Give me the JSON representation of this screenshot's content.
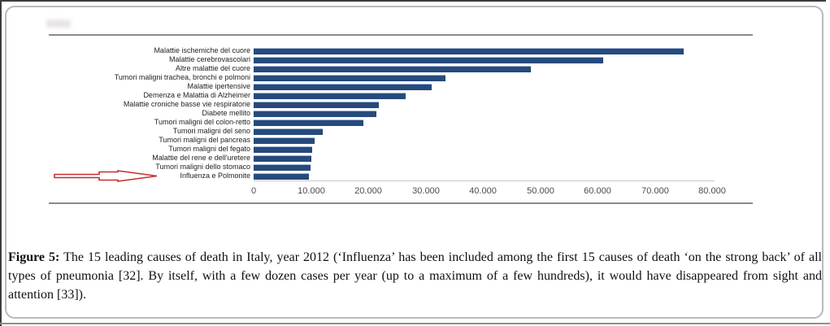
{
  "figure": {
    "caption_label": "Figure 5:",
    "caption_text": "The 15 leading causes of death in Italy, year 2012 (‘Influenza’ has been included among the first 15 causes of death ‘on the strong back’ of all types of pneumonia [32]. By itself, with a few dozen cases per year (up to a maximum of a few hundreds), it would have disappeared from sight and attention [33])."
  },
  "chart_data": {
    "type": "bar",
    "orientation": "horizontal",
    "title": "",
    "xlabel": "",
    "ylabel": "",
    "categories": [
      "Malattie ischemiche del cuore",
      "Malattie cerebrovascolari",
      "Altre malattie del cuore",
      "Tumori maligni trachea, bronchi e polmoni",
      "Malattie ipertensive",
      "Demenza e Malattia di Alzheimer",
      "Malattie croniche basse vie respiratorie",
      "Diabete mellito",
      "Tumori maligni del colon-retto",
      "Tumori maligni del seno",
      "Tumori maligni del pancreas",
      "Tumori maligni del fegato",
      "Malattie del rene e dell'uretere",
      "Tumori maligni dello stomaco",
      "Influenza e Polmonite"
    ],
    "values": [
      75000,
      61000,
      48300,
      33500,
      31000,
      26500,
      21800,
      21400,
      19200,
      12000,
      10600,
      10200,
      10100,
      9900,
      9700
    ],
    "xlim": [
      0,
      80000
    ],
    "x_ticks": [
      0,
      10000,
      20000,
      30000,
      40000,
      50000,
      60000,
      70000,
      80000
    ],
    "x_tick_labels": [
      "0",
      "10.000",
      "20.000",
      "30.000",
      "40.000",
      "50.000",
      "60.000",
      "70.000",
      "80.000"
    ],
    "grid": false,
    "legend": false,
    "bar_color": "#264a7b",
    "bar_edge_color": "#9db3d2",
    "annotation": {
      "type": "arrow",
      "target_category": "Influenza e Polmonite",
      "color": "#c52f2f"
    }
  }
}
